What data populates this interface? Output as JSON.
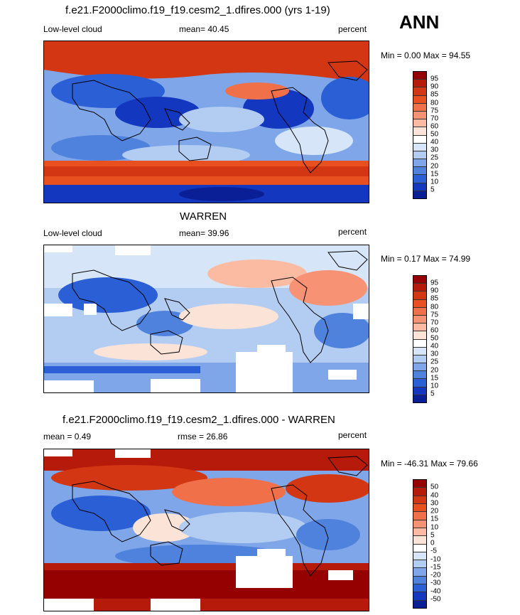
{
  "season": "ANN",
  "panels": [
    {
      "id": "model",
      "title": "f.e21.F2000climo.f19_f19.cesm2_1.dfires.000 (yrs 1-19)",
      "left_label": "Low-level cloud",
      "center_label": "mean=  40.45",
      "right_label": "percent",
      "minmax": "Min =   0.00 Max =  94.55",
      "levels": [
        "95",
        "90",
        "85",
        "80",
        "75",
        "70",
        "60",
        "50",
        "40",
        "30",
        "25",
        "20",
        "15",
        "10",
        "5"
      ]
    },
    {
      "id": "obs",
      "title": "WARREN",
      "left_label": "Low-level cloud",
      "center_label": "mean=  39.96",
      "right_label": "percent",
      "minmax": "Min =   0.17 Max =  74.99",
      "levels": [
        "95",
        "90",
        "85",
        "80",
        "75",
        "70",
        "60",
        "50",
        "40",
        "30",
        "25",
        "20",
        "15",
        "10",
        "5"
      ]
    },
    {
      "id": "diff",
      "title": "f.e21.F2000climo.f19_f19.cesm2_1.dfires.000 - WARREN",
      "left_label": "mean =   0.49",
      "center_label": "rmse =  26.86",
      "right_label": "percent",
      "minmax": "Min = -46.31 Max =  79.66",
      "levels": [
        "50",
        "40",
        "30",
        "20",
        "15",
        "10",
        "5",
        "0",
        "-5",
        "-10",
        "-15",
        "-20",
        "-30",
        "-40",
        "-50"
      ]
    }
  ],
  "colors": {
    "palette": [
      "#950000",
      "#b51a0a",
      "#d23612",
      "#e8501f",
      "#f0704a",
      "#f79275",
      "#fbbba2",
      "#fbe3d8",
      "#ffffff",
      "#d6e6f8",
      "#b3cdf2",
      "#7fa6e8",
      "#4f82dc",
      "#2a5fd6",
      "#1437c0",
      "#0a1e96"
    ]
  }
}
